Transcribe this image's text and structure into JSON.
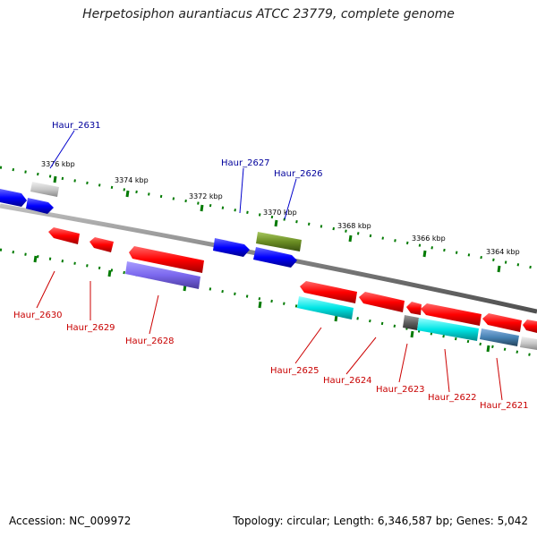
{
  "title": "Herpetosiphon aurantiacus ATCC 23779, complete genome",
  "footer": {
    "accession": "Accession: NC_009972",
    "summary": "Topology: circular; Length: 6,346,587 bp; Genes: 5,042"
  },
  "scale_labels": [
    "3376 kbp",
    "3374 kbp",
    "3372 kbp",
    "3370 kbp",
    "3368 kbp",
    "3366 kbp",
    "3364 kbp"
  ],
  "gene_labels": {
    "forward": [
      "Haur_2631",
      "Haur_2627",
      "Haur_2626"
    ],
    "reverse": [
      "Haur_2630",
      "Haur_2629",
      "Haur_2628",
      "Haur_2625",
      "Haur_2624",
      "Haur_2623",
      "Haur_2622",
      "Haur_2621"
    ]
  },
  "colors": {
    "forward_label": "#00009c",
    "reverse_label": "#c80000",
    "backbone": "#808080",
    "tick": "#007a00",
    "forward_gene": "#0000ff",
    "reverse_gene": "#ff0000",
    "cds_violet": "#7b68ee",
    "cds_cyan": "#00e0e0",
    "cds_olive": "#6b8e23",
    "cds_gray": "#c0c0c0"
  }
}
